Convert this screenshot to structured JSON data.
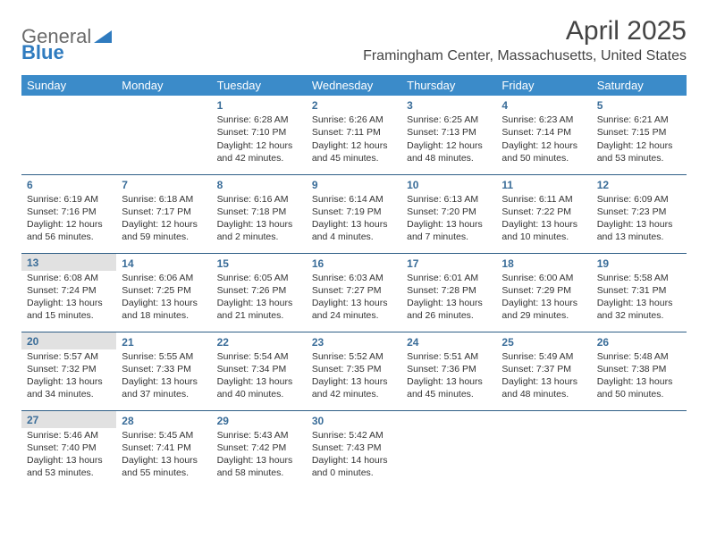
{
  "logo": {
    "text1": "General",
    "text2": "Blue"
  },
  "header": {
    "title": "April 2025",
    "location": "Framingham Center, Massachusetts, United States"
  },
  "colors": {
    "header_bg": "#3b8bc9",
    "header_fg": "#ffffff",
    "rule": "#2f5f87",
    "shade_bg": "#e1e1e1",
    "daynum": "#3a6d99",
    "body_text": "#333333",
    "page_bg": "#ffffff"
  },
  "weekdays": [
    "Sunday",
    "Monday",
    "Tuesday",
    "Wednesday",
    "Thursday",
    "Friday",
    "Saturday"
  ],
  "weeks": [
    [
      null,
      null,
      {
        "n": "1",
        "sr": "Sunrise: 6:28 AM",
        "ss": "Sunset: 7:10 PM",
        "dl": "Daylight: 12 hours and 42 minutes."
      },
      {
        "n": "2",
        "sr": "Sunrise: 6:26 AM",
        "ss": "Sunset: 7:11 PM",
        "dl": "Daylight: 12 hours and 45 minutes."
      },
      {
        "n": "3",
        "sr": "Sunrise: 6:25 AM",
        "ss": "Sunset: 7:13 PM",
        "dl": "Daylight: 12 hours and 48 minutes."
      },
      {
        "n": "4",
        "sr": "Sunrise: 6:23 AM",
        "ss": "Sunset: 7:14 PM",
        "dl": "Daylight: 12 hours and 50 minutes."
      },
      {
        "n": "5",
        "sr": "Sunrise: 6:21 AM",
        "ss": "Sunset: 7:15 PM",
        "dl": "Daylight: 12 hours and 53 minutes."
      }
    ],
    [
      {
        "n": "6",
        "sr": "Sunrise: 6:19 AM",
        "ss": "Sunset: 7:16 PM",
        "dl": "Daylight: 12 hours and 56 minutes."
      },
      {
        "n": "7",
        "sr": "Sunrise: 6:18 AM",
        "ss": "Sunset: 7:17 PM",
        "dl": "Daylight: 12 hours and 59 minutes."
      },
      {
        "n": "8",
        "sr": "Sunrise: 6:16 AM",
        "ss": "Sunset: 7:18 PM",
        "dl": "Daylight: 13 hours and 2 minutes."
      },
      {
        "n": "9",
        "sr": "Sunrise: 6:14 AM",
        "ss": "Sunset: 7:19 PM",
        "dl": "Daylight: 13 hours and 4 minutes."
      },
      {
        "n": "10",
        "sr": "Sunrise: 6:13 AM",
        "ss": "Sunset: 7:20 PM",
        "dl": "Daylight: 13 hours and 7 minutes."
      },
      {
        "n": "11",
        "sr": "Sunrise: 6:11 AM",
        "ss": "Sunset: 7:22 PM",
        "dl": "Daylight: 13 hours and 10 minutes."
      },
      {
        "n": "12",
        "sr": "Sunrise: 6:09 AM",
        "ss": "Sunset: 7:23 PM",
        "dl": "Daylight: 13 hours and 13 minutes."
      }
    ],
    [
      {
        "n": "13",
        "shade": true,
        "sr": "Sunrise: 6:08 AM",
        "ss": "Sunset: 7:24 PM",
        "dl": "Daylight: 13 hours and 15 minutes."
      },
      {
        "n": "14",
        "sr": "Sunrise: 6:06 AM",
        "ss": "Sunset: 7:25 PM",
        "dl": "Daylight: 13 hours and 18 minutes."
      },
      {
        "n": "15",
        "sr": "Sunrise: 6:05 AM",
        "ss": "Sunset: 7:26 PM",
        "dl": "Daylight: 13 hours and 21 minutes."
      },
      {
        "n": "16",
        "sr": "Sunrise: 6:03 AM",
        "ss": "Sunset: 7:27 PM",
        "dl": "Daylight: 13 hours and 24 minutes."
      },
      {
        "n": "17",
        "sr": "Sunrise: 6:01 AM",
        "ss": "Sunset: 7:28 PM",
        "dl": "Daylight: 13 hours and 26 minutes."
      },
      {
        "n": "18",
        "sr": "Sunrise: 6:00 AM",
        "ss": "Sunset: 7:29 PM",
        "dl": "Daylight: 13 hours and 29 minutes."
      },
      {
        "n": "19",
        "sr": "Sunrise: 5:58 AM",
        "ss": "Sunset: 7:31 PM",
        "dl": "Daylight: 13 hours and 32 minutes."
      }
    ],
    [
      {
        "n": "20",
        "shade": true,
        "sr": "Sunrise: 5:57 AM",
        "ss": "Sunset: 7:32 PM",
        "dl": "Daylight: 13 hours and 34 minutes."
      },
      {
        "n": "21",
        "sr": "Sunrise: 5:55 AM",
        "ss": "Sunset: 7:33 PM",
        "dl": "Daylight: 13 hours and 37 minutes."
      },
      {
        "n": "22",
        "sr": "Sunrise: 5:54 AM",
        "ss": "Sunset: 7:34 PM",
        "dl": "Daylight: 13 hours and 40 minutes."
      },
      {
        "n": "23",
        "sr": "Sunrise: 5:52 AM",
        "ss": "Sunset: 7:35 PM",
        "dl": "Daylight: 13 hours and 42 minutes."
      },
      {
        "n": "24",
        "sr": "Sunrise: 5:51 AM",
        "ss": "Sunset: 7:36 PM",
        "dl": "Daylight: 13 hours and 45 minutes."
      },
      {
        "n": "25",
        "sr": "Sunrise: 5:49 AM",
        "ss": "Sunset: 7:37 PM",
        "dl": "Daylight: 13 hours and 48 minutes."
      },
      {
        "n": "26",
        "sr": "Sunrise: 5:48 AM",
        "ss": "Sunset: 7:38 PM",
        "dl": "Daylight: 13 hours and 50 minutes."
      }
    ],
    [
      {
        "n": "27",
        "shade": true,
        "sr": "Sunrise: 5:46 AM",
        "ss": "Sunset: 7:40 PM",
        "dl": "Daylight: 13 hours and 53 minutes."
      },
      {
        "n": "28",
        "sr": "Sunrise: 5:45 AM",
        "ss": "Sunset: 7:41 PM",
        "dl": "Daylight: 13 hours and 55 minutes."
      },
      {
        "n": "29",
        "sr": "Sunrise: 5:43 AM",
        "ss": "Sunset: 7:42 PM",
        "dl": "Daylight: 13 hours and 58 minutes."
      },
      {
        "n": "30",
        "sr": "Sunrise: 5:42 AM",
        "ss": "Sunset: 7:43 PM",
        "dl": "Daylight: 14 hours and 0 minutes."
      },
      null,
      null,
      null
    ]
  ]
}
